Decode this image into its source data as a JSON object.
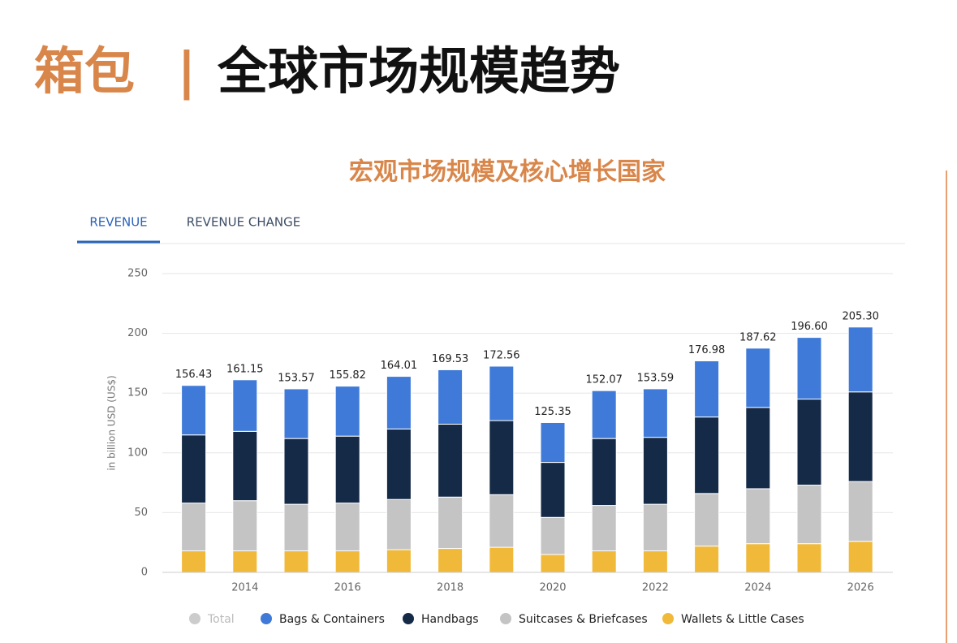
{
  "header": {
    "title_accent": "箱包",
    "separator": "|",
    "title_main": "全球市场规模趋势",
    "subtitle": "宏观市场规模及核心增长国家",
    "tabs": [
      "REVENUE",
      "REVENUE CHANGE"
    ]
  },
  "chart_data": {
    "type": "stacked-bar",
    "ylabel": "in billion USD (US$)",
    "categories": [
      null,
      "2014",
      null,
      "2016",
      null,
      "2018",
      null,
      "2020",
      null,
      "2022",
      null,
      "2024",
      null,
      "2026"
    ],
    "ylim": [
      0,
      250
    ],
    "yticks": [
      0,
      50,
      100,
      150,
      200,
      250
    ],
    "grid": true,
    "total": {
      "name": "Total",
      "color": "#cccccc",
      "values": [
        156.43,
        161.15,
        153.57,
        155.82,
        164.01,
        169.53,
        172.56,
        125.35,
        152.07,
        153.59,
        176.98,
        187.62,
        196.6,
        205.3
      ],
      "value_labels": [
        "156.43",
        "161.15",
        "153.57",
        "155.82",
        "164.01",
        "169.53",
        "172.56",
        "125.35",
        "152.07",
        "153.59",
        "176.98",
        "187.62",
        "196.60",
        "205.30"
      ]
    },
    "series": [
      {
        "name": "Wallets & Little Cases",
        "color": "#f0b93a",
        "values": [
          18,
          18,
          18,
          18,
          19,
          20,
          21,
          15,
          18,
          18,
          22,
          24,
          24,
          26
        ]
      },
      {
        "name": "Suitcases & Briefcases",
        "color": "#c4c4c4",
        "values": [
          40,
          42,
          39,
          40,
          42,
          43,
          44,
          31,
          38,
          39,
          44,
          46,
          49,
          50
        ]
      },
      {
        "name": "Handbags",
        "color": "#152a46",
        "values": [
          57,
          58,
          55,
          56,
          59,
          61,
          62,
          46,
          56,
          56,
          64,
          68,
          72,
          75
        ]
      },
      {
        "name": "Bags & Containers",
        "color": "#3f7ad8",
        "values": [
          41.43,
          43.15,
          41.57,
          41.82,
          44.01,
          45.53,
          45.56,
          33.35,
          40.07,
          40.59,
          46.98,
          49.62,
          51.6,
          54.3
        ]
      }
    ]
  }
}
